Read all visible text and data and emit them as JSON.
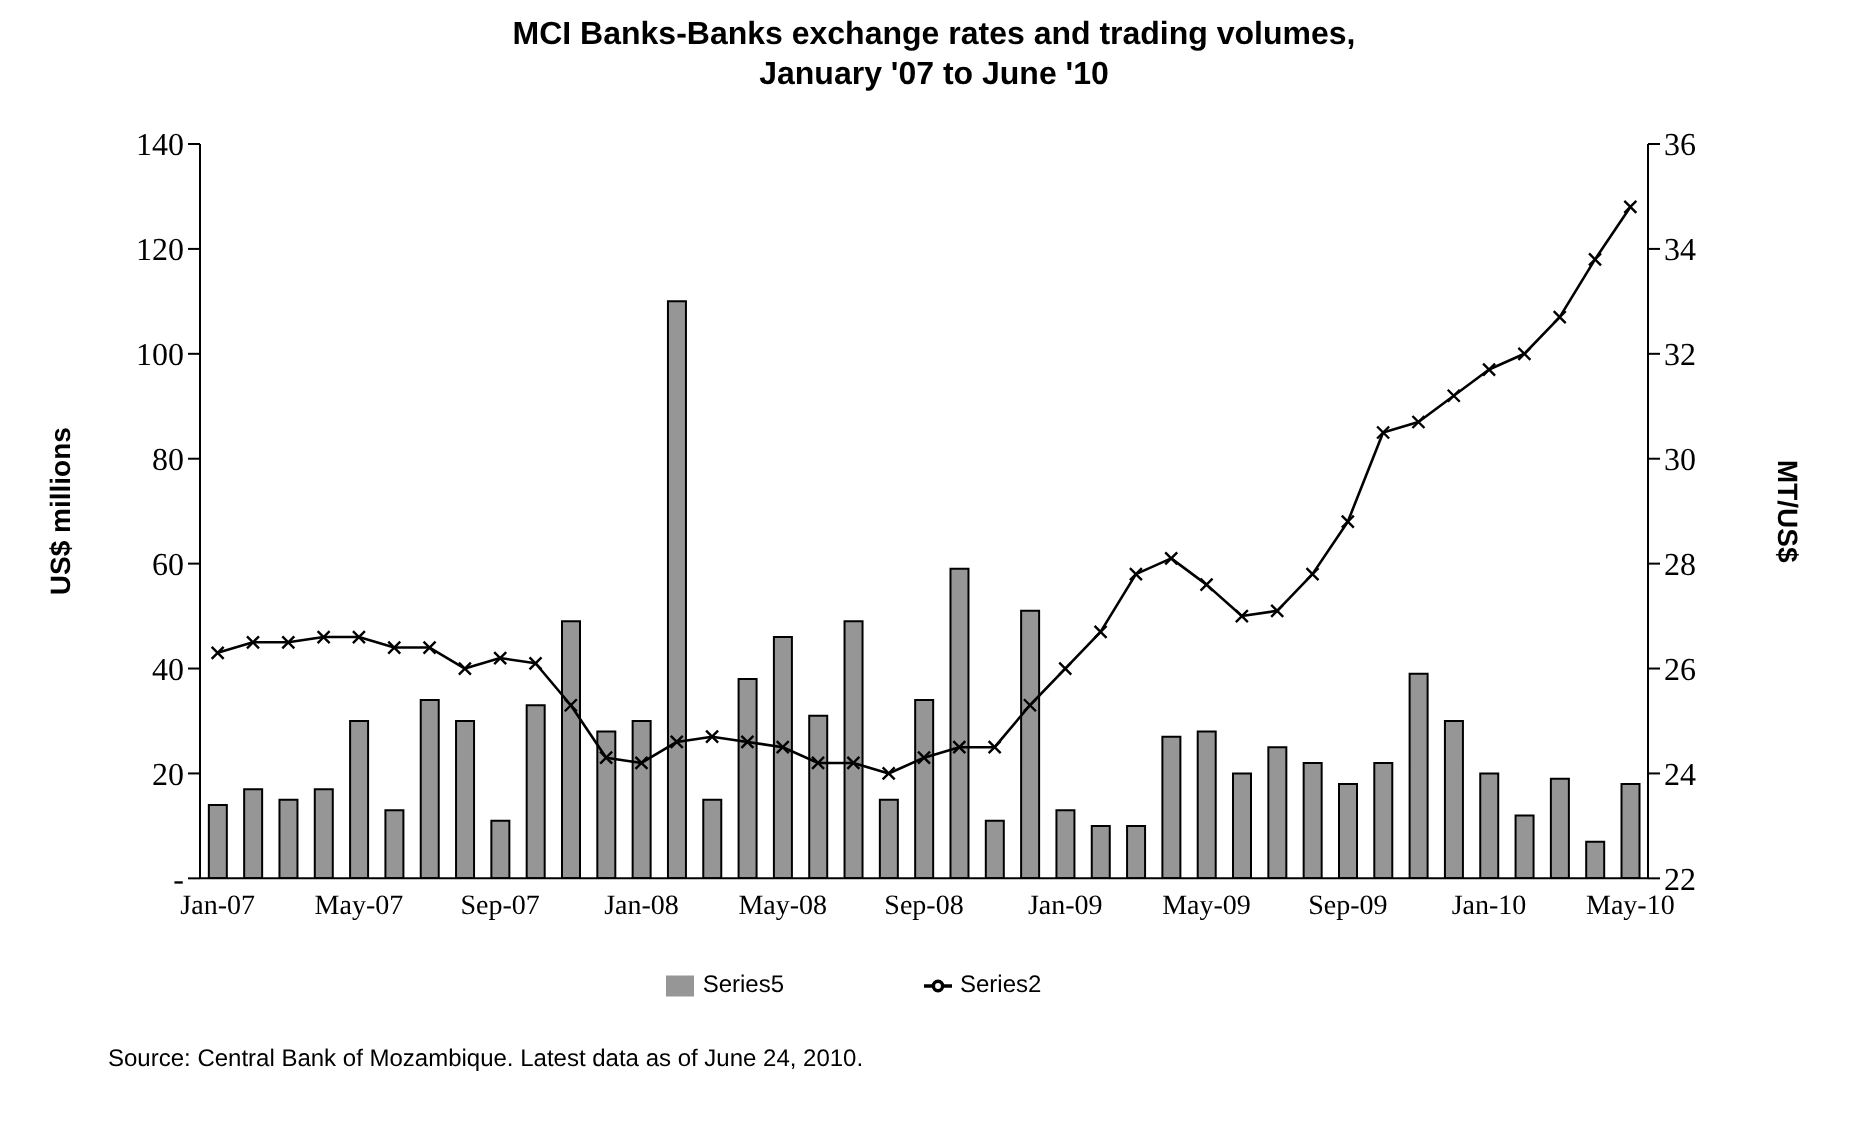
{
  "chart_data": {
    "type": "bar",
    "title": "MCI Banks-Banks exchange rates and trading volumes,\nJanuary '07 to June '10",
    "categories": [
      "Jan-07",
      null,
      null,
      null,
      "May-07",
      null,
      null,
      null,
      "Sep-07",
      null,
      null,
      null,
      "Jan-08",
      null,
      null,
      null,
      "May-08",
      null,
      null,
      null,
      "Sep-08",
      null,
      null,
      null,
      "Jan-09",
      null,
      null,
      null,
      "May-09",
      null,
      null,
      null,
      "Sep-09",
      null,
      null,
      null,
      "Jan-10",
      null,
      null,
      null,
      "May-10"
    ],
    "series": [
      {
        "name": "Series5",
        "color": "#969696",
        "values": [
          14,
          17,
          15,
          17,
          30,
          13,
          34,
          30,
          11,
          33,
          49,
          28,
          30,
          110,
          15,
          38,
          46,
          31,
          49,
          15,
          34,
          59,
          11,
          51,
          13,
          10,
          10,
          27,
          28,
          20,
          25,
          22,
          18,
          22,
          39,
          30,
          20,
          12,
          19,
          7,
          18
        ]
      },
      {
        "name": "Series2",
        "type": "line",
        "axis": "y2",
        "color": "#000000",
        "marker": "cross",
        "line_style": "solid",
        "values": [
          26.3,
          26.5,
          26.5,
          26.6,
          26.6,
          26.4,
          26.4,
          26.0,
          26.2,
          26.1,
          25.3,
          24.3,
          24.2,
          24.6,
          24.7,
          24.6,
          24.5,
          24.2,
          24.2,
          24.0,
          24.3,
          24.5,
          24.5,
          25.3,
          26.0,
          26.7,
          27.8,
          28.1,
          27.6,
          27.0,
          27.1,
          27.8,
          28.8,
          30.5,
          30.7,
          31.2,
          31.7,
          32.0,
          32.7,
          33.8,
          34.8
        ]
      }
    ],
    "ylabel": "US$ millions",
    "y2label": "MT/US$",
    "ylim": [
      0,
      140
    ],
    "yticks": [
      {
        "value": 0,
        "label": "-"
      },
      20,
      40,
      60,
      80,
      100,
      120,
      140
    ],
    "y2lim": [
      22,
      36
    ],
    "y2ticks": [
      22,
      24,
      26,
      28,
      30,
      32,
      34,
      36
    ],
    "grid": false,
    "legend": "bottom",
    "annotations": [
      "Source: Central Bank of Mozambique. Latest data as of  June 24, 2010."
    ]
  }
}
